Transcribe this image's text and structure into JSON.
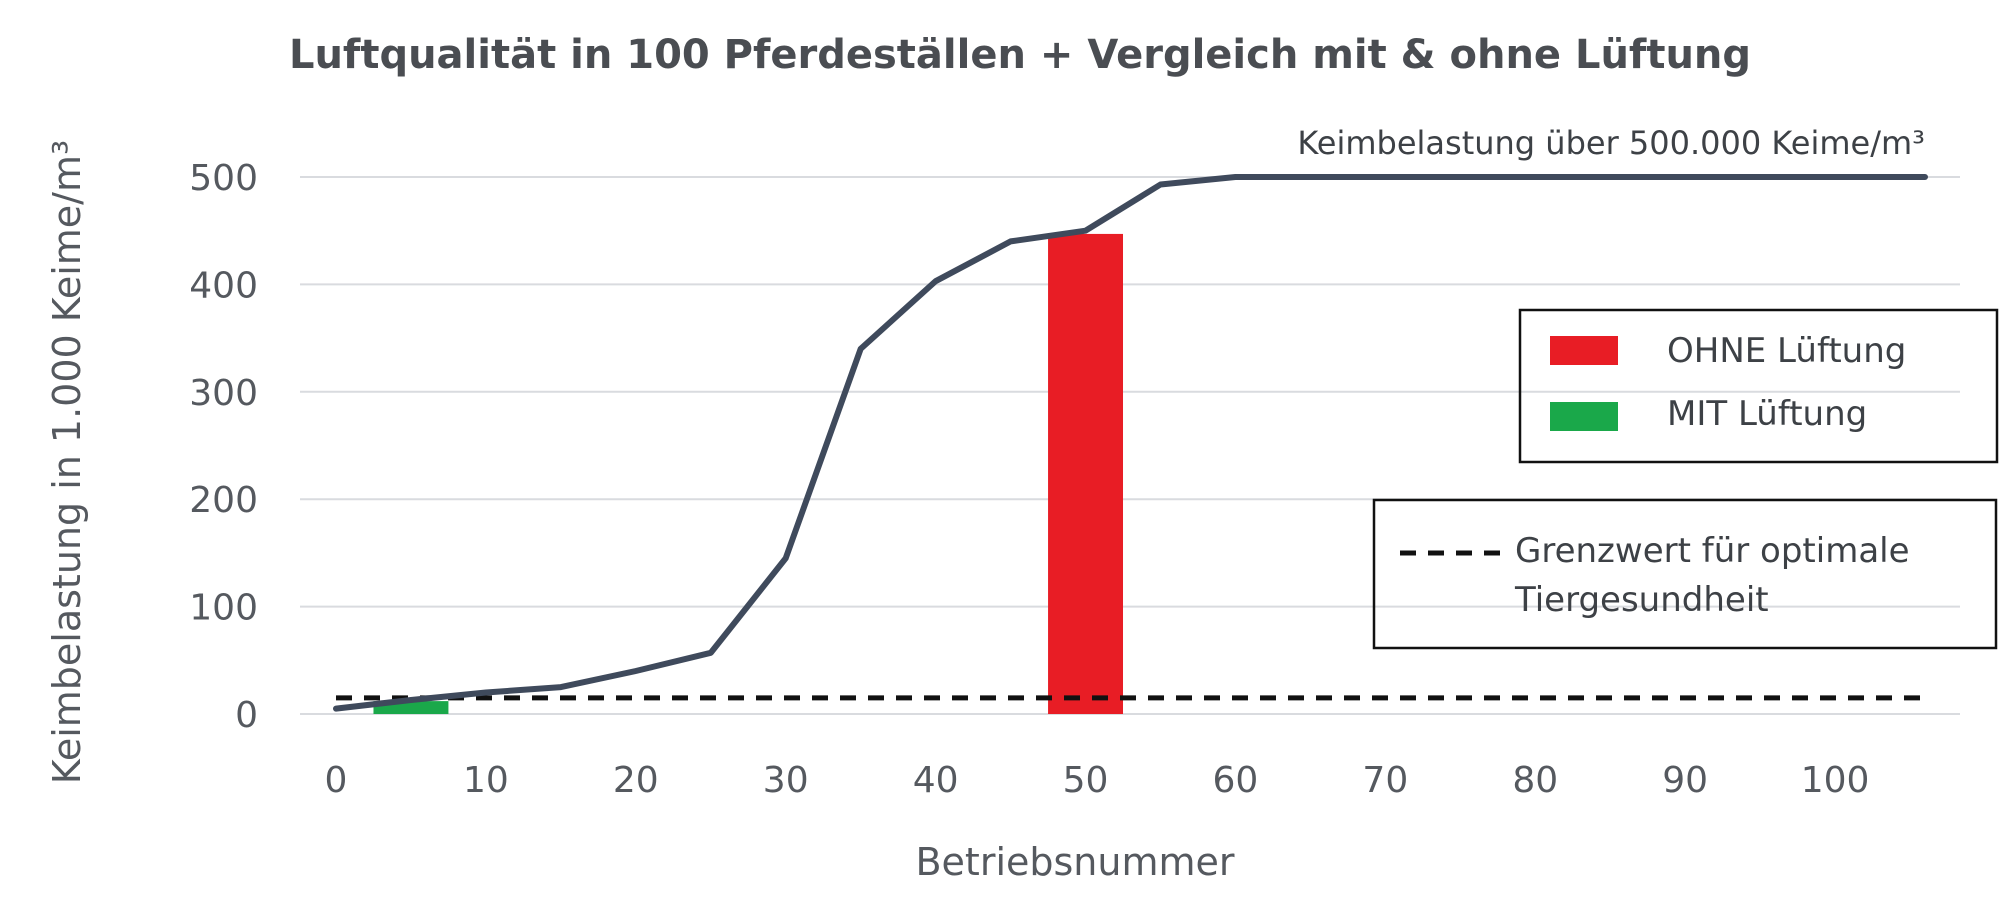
{
  "chart_data": {
    "type": "line",
    "title": "Luftqualität in 100 Pferdeställen + Vergleich mit & ohne Lüftung",
    "xlabel": "Betriebsnummer",
    "ylabel": "Keimbelastung in 1.000 Keime/m³",
    "xlim": [
      0,
      106
    ],
    "ylim": [
      0,
      500
    ],
    "x_ticks": [
      "0",
      "10",
      "20",
      "30",
      "40",
      "50",
      "60",
      "70",
      "80",
      "90",
      "100"
    ],
    "y_ticks": [
      "0",
      "100",
      "200",
      "300",
      "400",
      "500"
    ],
    "grid": "horizontal",
    "series": [
      {
        "kind": "line",
        "color": "#3f4a5c",
        "points": [
          [
            0,
            5
          ],
          [
            5,
            13
          ],
          [
            10,
            20
          ],
          [
            15,
            25
          ],
          [
            20,
            40
          ],
          [
            25,
            57
          ],
          [
            30,
            145
          ],
          [
            35,
            340
          ],
          [
            40,
            403
          ],
          [
            45,
            440
          ],
          [
            50,
            450
          ],
          [
            55,
            493
          ],
          [
            60,
            500
          ],
          [
            70,
            500
          ],
          [
            80,
            500
          ],
          [
            90,
            500
          ],
          [
            100,
            500
          ],
          [
            106,
            500
          ]
        ]
      },
      {
        "name": "Grenzwert für optimale Tiergesundheit",
        "kind": "dashed-line",
        "color": "#111111",
        "y": 15
      },
      {
        "name": "OHNE Lüftung",
        "kind": "bar",
        "color": "#e81d25",
        "x_center": 50,
        "width": 5,
        "value": 447
      },
      {
        "name": "MIT Lüftung",
        "kind": "bar",
        "color": "#1aa84a",
        "x_center": 5,
        "width": 5,
        "value": 12
      }
    ],
    "annotations": [
      {
        "text": "Keimbelastung über 500.000 Keime/m³",
        "x": 106,
        "y": 500,
        "anchor": "end"
      }
    ],
    "legend": {
      "placement": "right",
      "entries": [
        {
          "label": "OHNE Lüftung",
          "color": "#e81d25",
          "symbol": "box"
        },
        {
          "label": "MIT Lüftung",
          "color": "#1aa84a",
          "symbol": "box"
        }
      ],
      "dashed_entry": {
        "line1": "Grenzwert für optimale",
        "line2": "Tiergesundheit"
      }
    }
  }
}
